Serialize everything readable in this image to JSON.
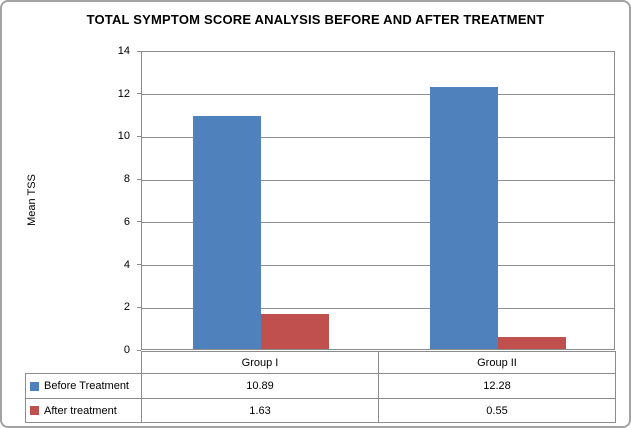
{
  "title": "TOTAL SYMPTOM SCORE ANALYSIS BEFORE AND AFTER TREATMENT",
  "chart_data": {
    "type": "bar",
    "title": "TOTAL SYMPTOM SCORE ANALYSIS BEFORE AND AFTER TREATMENT",
    "categories": [
      "Group I",
      "Group II"
    ],
    "series": [
      {
        "name": "Before Treatment",
        "color": "#4f81bd",
        "values": [
          10.89,
          12.28
        ]
      },
      {
        "name": "After treatment",
        "color": "#c0504d",
        "values": [
          1.63,
          0.55
        ]
      }
    ],
    "xlabel": "",
    "ylabel": "Mean TSS",
    "ylim": [
      0,
      14
    ],
    "ytick_step": 2,
    "ytick_labels": [
      "0",
      "2",
      "4",
      "6",
      "8",
      "10",
      "12",
      "14"
    ],
    "grid": true,
    "legend_position": "data-table-bottom",
    "data_table": {
      "column_headers": [
        "Group I",
        "Group II"
      ],
      "rows": [
        {
          "label": "Before Treatment",
          "values": [
            "10.89",
            "12.28"
          ]
        },
        {
          "label": "After treatment",
          "values": [
            "1.63",
            "0.55"
          ]
        }
      ]
    }
  },
  "colors": {
    "series_before": "#4f81bd",
    "series_after": "#c0504d",
    "gridline": "#8e8e8e",
    "axis_border": "#8c8c8c",
    "outer_border": "#a3a3a3",
    "background": "#ffffff",
    "text": "#000000"
  }
}
